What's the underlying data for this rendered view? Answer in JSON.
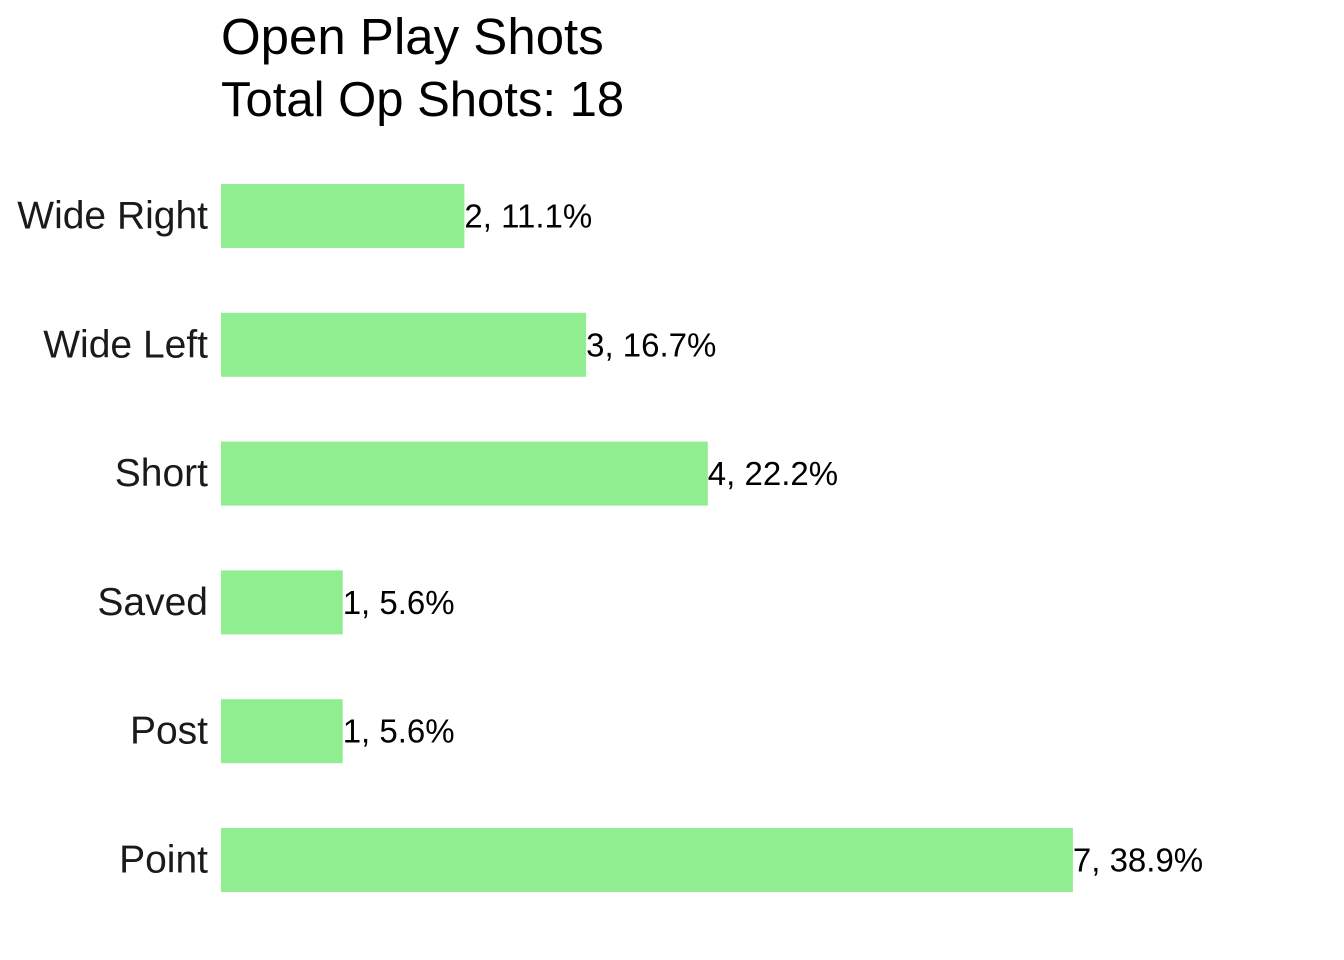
{
  "chart_data": {
    "type": "bar",
    "orientation": "horizontal",
    "title": "Open Play Shots",
    "subtitle": "Total Op Shots: 18",
    "xlabel": "",
    "ylabel": "",
    "categories": [
      "Wide Right",
      "Wide Left",
      "Short",
      "Saved",
      "Post",
      "Point"
    ],
    "values": [
      2,
      3,
      4,
      1,
      1,
      7
    ],
    "percentages": [
      11.1,
      16.7,
      22.2,
      5.6,
      5.6,
      38.9
    ],
    "data_labels": [
      "2, 11.1%",
      "3, 16.7%",
      "4, 22.2%",
      "1, 5.6%",
      "1, 5.6%",
      "7, 38.9%"
    ],
    "total": 18,
    "xlim": [
      0,
      7
    ],
    "grid": false,
    "legend": "none",
    "bar_color": "#90EE90"
  }
}
